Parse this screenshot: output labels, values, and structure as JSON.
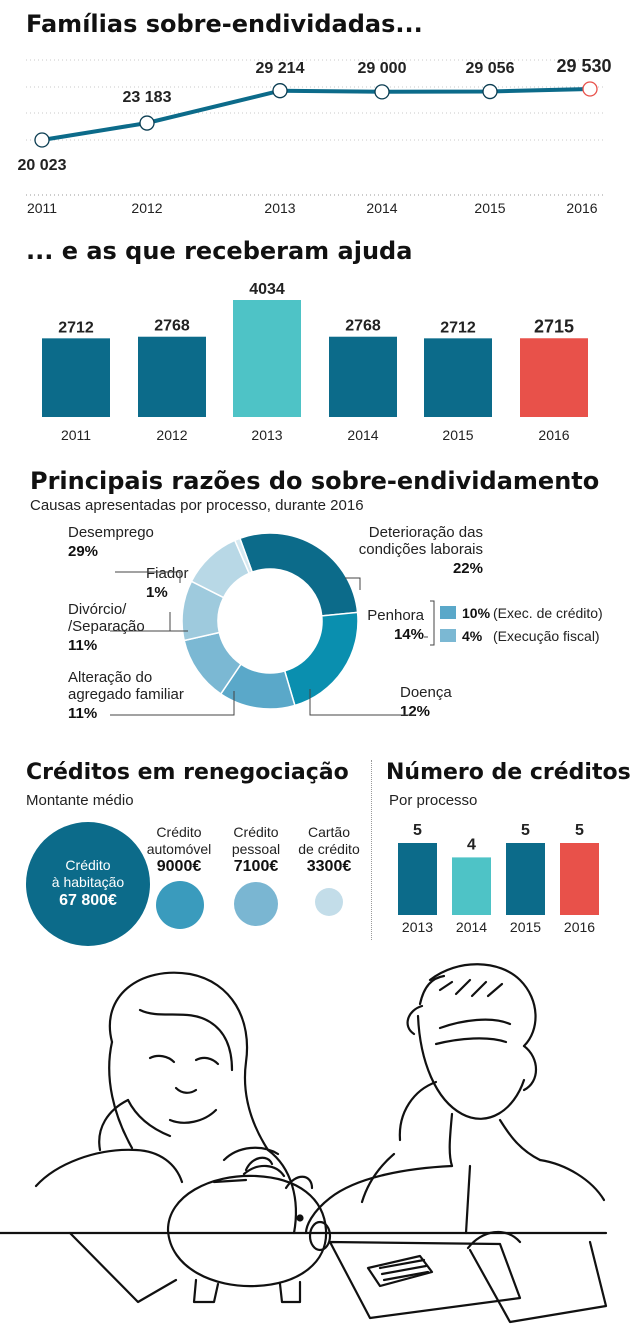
{
  "sections": {
    "line_title": "Famílias sobre-endividadas...",
    "bar_title": "... e as que receberam ajuda",
    "donut_title": "Principais razões do sobre-endividamento",
    "donut_subtitle": "Causas apresentadas por processo, durante 2016",
    "credits_title": "Créditos em renegociação",
    "credits_subtitle": "Montante médio",
    "count_title": "Número de créditos",
    "count_subtitle": "Por processo"
  },
  "colors": {
    "blue": "#0c6b8a",
    "cyan": "#4ec3c6",
    "red": "#e8514a",
    "donut": [
      "#0c6b8a",
      "#0a8faf",
      "#5aa8c9",
      "#7bb8d3",
      "#9ecadd",
      "#b8d8e6",
      "#d6e9f1"
    ]
  },
  "chart_data": [
    {
      "type": "line",
      "title": "Famílias sobre-endividadas...",
      "x": [
        "2011",
        "2012",
        "2013",
        "2014",
        "2015",
        "2016"
      ],
      "values": [
        20023,
        23183,
        29214,
        29000,
        29056,
        29530
      ],
      "labels": [
        "20 023",
        "23 183",
        "29 214",
        "29 000",
        "29 056",
        "29 530"
      ],
      "highlight_index": 5,
      "ylim": [
        19000,
        31000
      ]
    },
    {
      "type": "bar",
      "title": "... e as que receberam ajuda",
      "categories": [
        "2011",
        "2012",
        "2013",
        "2014",
        "2015",
        "2016"
      ],
      "values": [
        2712,
        2768,
        4034,
        2768,
        2712,
        2715
      ],
      "bar_colors": [
        "#0c6b8a",
        "#0c6b8a",
        "#4ec3c6",
        "#0c6b8a",
        "#0c6b8a",
        "#e8514a"
      ],
      "highlight_index": 5,
      "ylim": [
        0,
        4034
      ]
    },
    {
      "type": "pie",
      "title": "Principais razões do sobre-endividamento",
      "subtitle": "Causas apresentadas por processo, durante 2016",
      "slices": [
        {
          "label": "Desemprego",
          "value": 29,
          "pct": "29%"
        },
        {
          "label": "Deterioração das condições laborais",
          "value": 22,
          "pct": "22%"
        },
        {
          "label": "Penhora",
          "value": 14,
          "pct": "14%"
        },
        {
          "label": "Doença",
          "value": 12,
          "pct": "12%"
        },
        {
          "label": "Alteração do agregado familiar",
          "value": 11,
          "pct": "11%"
        },
        {
          "label": "Divórcio/ /Separação",
          "value": 11,
          "pct": "11%"
        },
        {
          "label": "Fiador",
          "value": 1,
          "pct": "1%"
        }
      ],
      "penhora_breakdown": [
        {
          "pct": "10%",
          "label": "(Exec. de crédito)",
          "color": "#5aa8c9"
        },
        {
          "pct": "4%",
          "label": "(Execução fiscal)",
          "color": "#7bb8d3"
        }
      ]
    },
    {
      "type": "bubble",
      "title": "Créditos em renegociação",
      "subtitle": "Montante médio",
      "items": [
        {
          "line1": "Crédito",
          "line2": "à habitação",
          "value": 67800,
          "amount": "67 800€",
          "color": "#0c6b8a"
        },
        {
          "line1": "Crédito",
          "line2": "automóvel",
          "value": 9000,
          "amount": "9000€",
          "color": "#3a9bbd"
        },
        {
          "line1": "Crédito",
          "line2": "pessoal",
          "value": 7100,
          "amount": "7100€",
          "color": "#7ab6d2"
        },
        {
          "line1": "Cartão",
          "line2": "de crédito",
          "value": 3300,
          "amount": "3300€",
          "color": "#c3dde9"
        }
      ]
    },
    {
      "type": "bar",
      "title": "Número de créditos",
      "subtitle": "Por processo",
      "categories": [
        "2013",
        "2014",
        "2015",
        "2016"
      ],
      "values": [
        5,
        4,
        5,
        5
      ],
      "bar_colors": [
        "#0c6b8a",
        "#4ec3c6",
        "#0c6b8a",
        "#e8514a"
      ],
      "ylim": [
        0,
        5
      ]
    }
  ]
}
